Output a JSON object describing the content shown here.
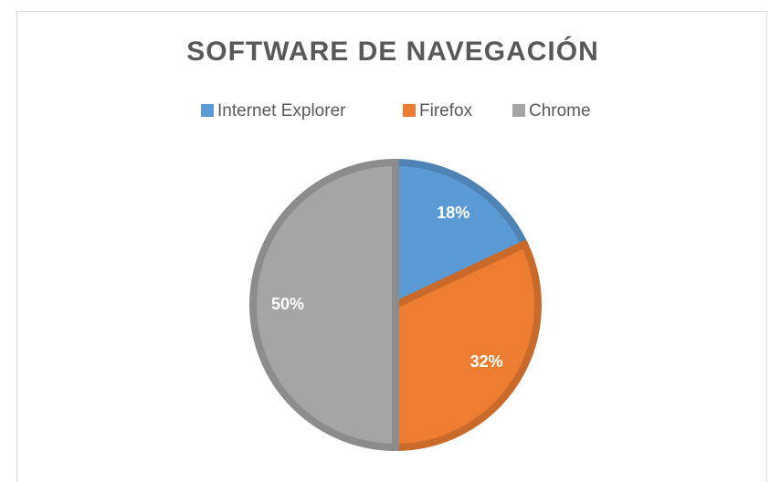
{
  "chart_data": {
    "type": "pie",
    "title": "SOFTWARE DE NAVEGACIÓN",
    "categories": [
      "Internet Explorer",
      "Firefox",
      "Chrome"
    ],
    "values": [
      18,
      32,
      50
    ],
    "value_labels": [
      "18%",
      "32%",
      "50%"
    ],
    "colors": [
      "#5b9bd5",
      "#ed7d31",
      "#a5a5a5"
    ],
    "legend": "top"
  }
}
